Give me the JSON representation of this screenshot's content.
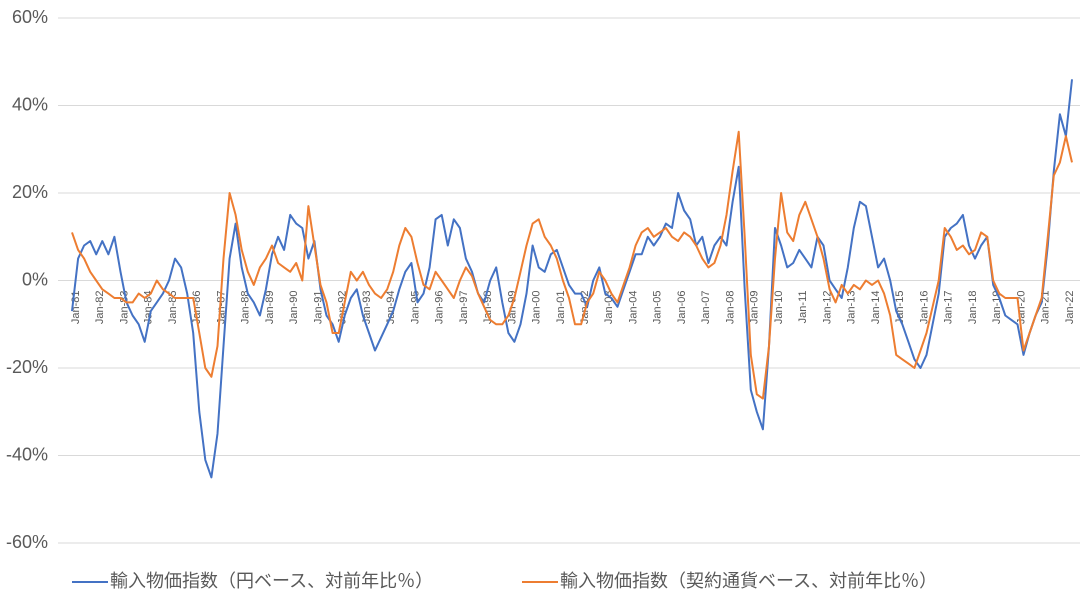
{
  "chart_data": {
    "type": "line",
    "categories": [
      "Jan-81",
      null,
      null,
      null,
      "Jan-82",
      null,
      null,
      null,
      "Jan-83",
      null,
      null,
      null,
      "Jan-84",
      null,
      null,
      null,
      "Jan-85",
      null,
      null,
      null,
      "Jan-86",
      null,
      null,
      null,
      "Jan-87",
      null,
      null,
      null,
      "Jan-88",
      null,
      null,
      null,
      "Jan-89",
      null,
      null,
      null,
      "Jan-90",
      null,
      null,
      null,
      "Jan-91",
      null,
      null,
      null,
      "Jan-92",
      null,
      null,
      null,
      "Jan-93",
      null,
      null,
      null,
      "Jan-94",
      null,
      null,
      null,
      "Jan-95",
      null,
      null,
      null,
      "Jan-96",
      null,
      null,
      null,
      "Jan-97",
      null,
      null,
      null,
      "Jan-98",
      null,
      null,
      null,
      "Jan-99",
      null,
      null,
      null,
      "Jan-00",
      null,
      null,
      null,
      "Jan-01",
      null,
      null,
      null,
      "Jan-02",
      null,
      null,
      null,
      "Jan-03",
      null,
      null,
      null,
      "Jan-04",
      null,
      null,
      null,
      "Jan-05",
      null,
      null,
      null,
      "Jan-06",
      null,
      null,
      null,
      "Jan-07",
      null,
      null,
      null,
      "Jan-08",
      null,
      null,
      null,
      "Jan-09",
      null,
      null,
      null,
      "Jan-10",
      null,
      null,
      null,
      "Jan-11",
      null,
      null,
      null,
      "Jan-12",
      null,
      null,
      null,
      "Jan-13",
      null,
      null,
      null,
      "Jan-14",
      null,
      null,
      null,
      "Jan-15",
      null,
      null,
      null,
      "Jan-16",
      null,
      null,
      null,
      "Jan-17",
      null,
      null,
      null,
      "Jan-18",
      null,
      null,
      null,
      "Jan-19",
      null,
      null,
      null,
      "Jan-20",
      null,
      null,
      null,
      "Jan-21",
      null,
      null,
      null,
      "Jan-22",
      null
    ],
    "series": [
      {
        "name": "輸入物価指数（円ベース、対前年比％）",
        "color": "#4472c4",
        "values": [
          -7,
          5,
          8,
          9,
          6,
          9,
          6,
          10,
          2,
          -5,
          -8,
          -10,
          -14,
          -7,
          -5,
          -3,
          0,
          5,
          3,
          -3,
          -12,
          -30,
          -41,
          -45,
          -35,
          -15,
          5,
          13,
          3,
          -3,
          -5,
          -8,
          -2,
          6,
          10,
          7,
          15,
          13,
          12,
          5,
          9,
          -2,
          -8,
          -10,
          -14,
          -8,
          -4,
          -2,
          -8,
          -12,
          -16,
          -13,
          -10,
          -7,
          -2,
          2,
          4,
          -5,
          -3,
          3,
          14,
          15,
          8,
          14,
          12,
          5,
          2,
          -3,
          -5,
          0,
          3,
          -5,
          -12,
          -14,
          -10,
          -3,
          8,
          3,
          2,
          6,
          7,
          3,
          -1,
          -3,
          -3,
          -6,
          0,
          3,
          -3,
          -4,
          -6,
          -2,
          2,
          6,
          6,
          10,
          8,
          10,
          13,
          12,
          20,
          16,
          14,
          8,
          10,
          4,
          8,
          10,
          8,
          18,
          26,
          -2,
          -25,
          -30,
          -34,
          -15,
          12,
          8,
          3,
          4,
          7,
          5,
          3,
          10,
          8,
          0,
          -2,
          -4,
          3,
          12,
          18,
          17,
          10,
          3,
          5,
          0,
          -7,
          -10,
          -14,
          -18,
          -20,
          -17,
          -10,
          -3,
          10,
          12,
          13,
          15,
          8,
          5,
          8,
          10,
          -1,
          -4,
          -8,
          -9,
          -10,
          -17,
          -12,
          -8,
          -5,
          8,
          25,
          38,
          33,
          46
        ]
      },
      {
        "name": "輸入物価指数（契約通貨ベース、対前年比％）",
        "color": "#ed7d31",
        "values": [
          11,
          7,
          5,
          2,
          0,
          -2,
          -3,
          -4,
          -4,
          -5,
          -5,
          -3,
          -4,
          -3,
          0,
          -2,
          -3,
          -4,
          -4,
          -4,
          -4,
          -12,
          -20,
          -22,
          -15,
          5,
          20,
          15,
          7,
          2,
          -1,
          3,
          5,
          8,
          4,
          3,
          2,
          4,
          0,
          17,
          8,
          -1,
          -5,
          -12,
          -12,
          -5,
          2,
          0,
          2,
          -1,
          -3,
          -4,
          -2,
          2,
          8,
          12,
          10,
          4,
          -1,
          -2,
          2,
          0,
          -2,
          -4,
          0,
          3,
          1,
          -3,
          -6,
          -9,
          -10,
          -10,
          -8,
          -4,
          2,
          8,
          13,
          14,
          10,
          8,
          5,
          0,
          -4,
          -10,
          -10,
          -5,
          -3,
          2,
          0,
          -3,
          -5,
          -1,
          3,
          8,
          11,
          12,
          10,
          11,
          12,
          10,
          9,
          11,
          10,
          8,
          5,
          3,
          4,
          8,
          15,
          25,
          34,
          10,
          -17,
          -26,
          -27,
          -15,
          5,
          20,
          11,
          9,
          15,
          18,
          14,
          10,
          5,
          -2,
          -5,
          -1,
          -3,
          -1,
          -2,
          0,
          -1,
          0,
          -3,
          -8,
          -17,
          -18,
          -19,
          -20,
          -16,
          -12,
          -6,
          0,
          12,
          10,
          7,
          8,
          6,
          7,
          11,
          10,
          0,
          -3,
          -4,
          -4,
          -4,
          -16,
          -12,
          -8,
          -4,
          10,
          24,
          27,
          33,
          27
        ]
      }
    ],
    "ylim": [
      -60,
      60
    ],
    "yticks": [
      {
        "value": -60,
        "label": "-60%"
      },
      {
        "value": -40,
        "label": "-40%"
      },
      {
        "value": -20,
        "label": "-20%"
      },
      {
        "value": 0,
        "label": "0%"
      },
      {
        "value": 20,
        "label": "20%"
      },
      {
        "value": 40,
        "label": "40%"
      },
      {
        "value": 60,
        "label": "60%"
      }
    ],
    "grid": true,
    "legend": "bottom"
  }
}
